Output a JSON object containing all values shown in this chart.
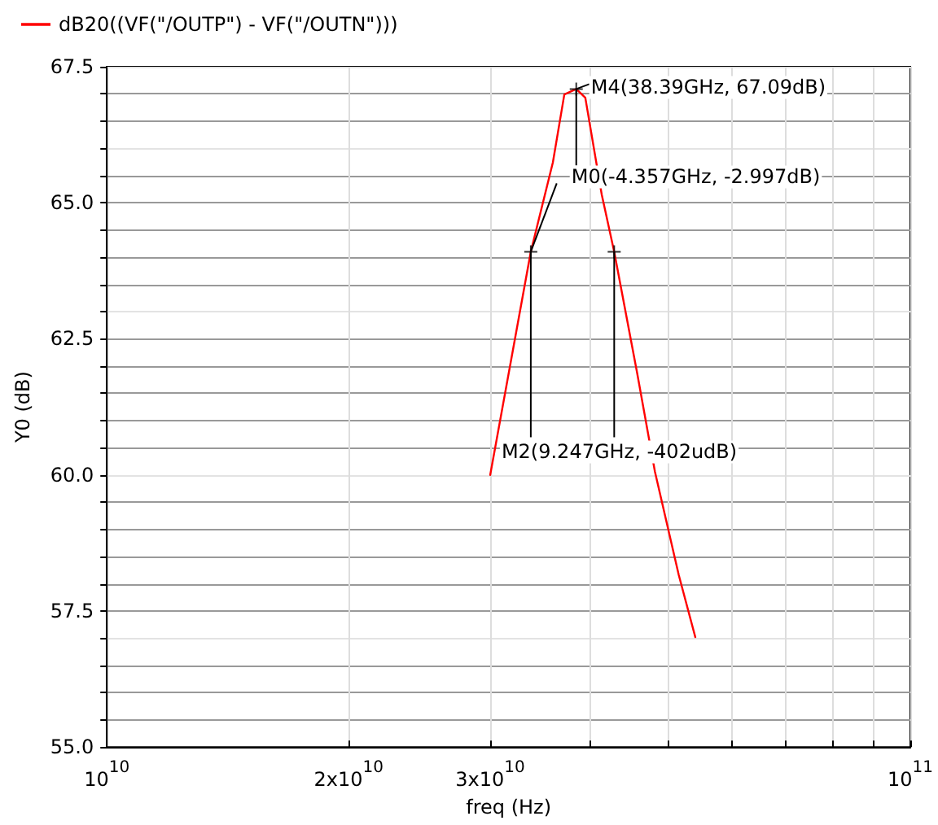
{
  "chart_data": {
    "type": "line",
    "xlabel": "freq (Hz)",
    "ylabel": "Y0 (dB)",
    "log": "x",
    "grid": true,
    "legend": "top left",
    "marker": "none",
    "line_style": "solid",
    "xlim": [
      10000000000.0,
      100000000000.0
    ],
    "xticks": [
      {
        "value": 10000000000.0,
        "label": "10$^{10}$"
      },
      {
        "value": 20000000000.0,
        "label": "2x10$^{10}$"
      },
      {
        "value": 30000000000.0,
        "label": "3x10$^{10}$"
      },
      {
        "value": 40000000000.0,
        "label": null
      },
      {
        "value": 50000000000.0,
        "label": null
      },
      {
        "value": 60000000000.0,
        "label": null
      },
      {
        "value": 70000000000.0,
        "label": null
      },
      {
        "value": 80000000000.0,
        "label": null
      },
      {
        "value": 90000000000.0,
        "label": null
      },
      {
        "value": 100000000000.0,
        "label": "10$^{11}$"
      }
    ],
    "ylim": [
      55,
      67.5
    ],
    "yticks": [
      {
        "value": 55,
        "label": "55.0"
      },
      {
        "value": 55.5,
        "label": null
      },
      {
        "value": 56,
        "label": null
      },
      {
        "value": 56.5,
        "label": null
      },
      {
        "value": 57,
        "label": null
      },
      {
        "value": 57.5,
        "label": "57.5"
      },
      {
        "value": 58,
        "label": null
      },
      {
        "value": 58.5,
        "label": null
      },
      {
        "value": 59,
        "label": null
      },
      {
        "value": 59.5,
        "label": null
      },
      {
        "value": 60,
        "label": "60.0"
      },
      {
        "value": 60.5,
        "label": null
      },
      {
        "value": 61,
        "label": null
      },
      {
        "value": 61.5,
        "label": null
      },
      {
        "value": 62,
        "label": null
      },
      {
        "value": 62.5,
        "label": "62.5"
      },
      {
        "value": 63,
        "label": null
      },
      {
        "value": 63.5,
        "label": null
      },
      {
        "value": 64,
        "label": null
      },
      {
        "value": 64.5,
        "label": null
      },
      {
        "value": 65,
        "label": "65.0"
      },
      {
        "value": 65.5,
        "label": null
      },
      {
        "value": 66,
        "label": null
      },
      {
        "value": 66.5,
        "label": null
      },
      {
        "value": 67,
        "label": null
      },
      {
        "value": 67.5,
        "label": "67.5"
      }
    ],
    "series": [
      {
        "name": "dB20((VF(\"/OUTP\") - VF(\"/OUTN\")))",
        "color": "#ff0000",
        "x": [
          30000000000.0,
          33700000000.0,
          35900000000.0,
          37100000000.0,
          38390000000.0,
          39400000000.0,
          41300000000.0,
          42800000000.0,
          45700000000.0,
          48100000000.0,
          51500000000.0,
          54000000000.0
        ],
        "values": [
          60.0,
          64.1,
          65.74,
          66.99,
          67.09,
          66.93,
          65.15,
          64.1,
          61.88,
          60.06,
          58.16,
          57.02
        ]
      },
      {
        "type": "scatter",
        "marker": "cross",
        "color": "#000000",
        "x": [
          33700000000.0,
          38390000000.0,
          42800000000.0
        ],
        "values": [
          64.1,
          67.09,
          64.1
        ]
      }
    ],
    "annotations": [
      {
        "text": "M4(38.39GHz, 67.09dB)",
        "x": 38390000000.0,
        "y": 67.09
      },
      {
        "text": "M0(-4.357GHz, -2.997dB)",
        "x": 33700000000.0,
        "y": 64.1
      },
      {
        "text": "M2(9.247GHz, -402udB)",
        "x": 42800000000.0,
        "y": 64.1
      }
    ]
  }
}
